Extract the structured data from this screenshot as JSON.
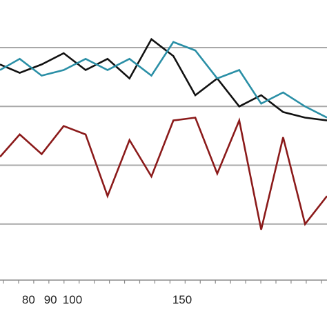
{
  "chart_data": {
    "type": "line",
    "title": "",
    "xlabel": "",
    "ylabel": "",
    "grid": true,
    "legend": "none",
    "x_tick_labels": [
      {
        "x": 80,
        "label": "80"
      },
      {
        "x": 90,
        "label": "90"
      },
      {
        "x": 100,
        "label": "100"
      },
      {
        "x": 150,
        "label": "150"
      }
    ],
    "xlim": [
      67,
      216
    ],
    "ylim": [
      0,
      100
    ],
    "gridlines_y": [
      20,
      41,
      62,
      83
    ],
    "series": [
      {
        "color": "#111111",
        "x": [
          67,
          76,
          86,
          96,
          106,
          116,
          126,
          136,
          146,
          156,
          166,
          176,
          186,
          196,
          206,
          216
        ],
        "y": [
          77,
          74,
          77,
          81,
          75,
          79,
          72,
          86,
          80,
          66,
          72,
          62,
          66,
          60,
          58,
          57
        ]
      },
      {
        "color": "#2A8FA6",
        "x": [
          67,
          76,
          86,
          96,
          106,
          116,
          126,
          136,
          146,
          156,
          166,
          176,
          186,
          196,
          206,
          216
        ],
        "y": [
          75,
          79,
          73,
          75,
          79,
          75,
          79,
          73,
          85,
          82,
          72,
          75,
          63,
          67,
          62,
          58
        ]
      },
      {
        "color": "#8B1A1A",
        "x": [
          67,
          76,
          86,
          96,
          106,
          116,
          126,
          136,
          146,
          156,
          166,
          176,
          186,
          196,
          206,
          216
        ],
        "y": [
          44,
          52,
          45,
          55,
          52,
          30,
          50,
          37,
          57,
          58,
          38,
          57,
          18,
          51,
          20,
          30
        ]
      }
    ]
  }
}
